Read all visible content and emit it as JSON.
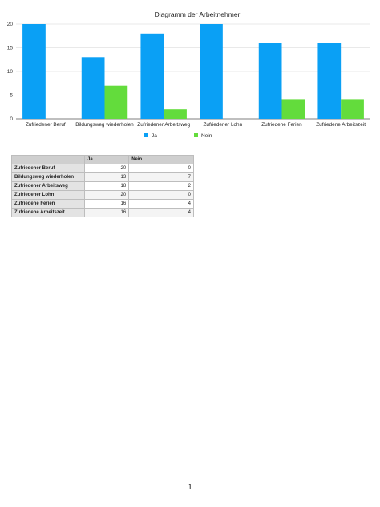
{
  "chart_data": {
    "type": "bar",
    "title": "Diagramm der Arbeitnehmer",
    "categories": [
      "Zufriedener Beruf",
      "Bildungsweg wiederholen",
      "Zufriedener Arbeitsweg",
      "Zufriedener Lohn",
      "Zufriedene Ferien",
      "Zufriedene Arbeitszeit"
    ],
    "series": [
      {
        "name": "Ja",
        "values": [
          20,
          13,
          18,
          20,
          16,
          16
        ],
        "color": "#0aa0f5"
      },
      {
        "name": "Nein",
        "values": [
          0,
          7,
          2,
          0,
          4,
          4
        ],
        "color": "#63dc3c"
      }
    ],
    "ylim": [
      0,
      20
    ],
    "yticks": [
      0,
      5,
      10,
      15,
      20
    ],
    "xlabel": "",
    "ylabel": "",
    "grid": true,
    "legend": "bottom-center"
  },
  "table": {
    "corner": "",
    "headers": [
      "Ja",
      "Nein"
    ],
    "rows": [
      {
        "label": "Zufriedener Beruf",
        "values": [
          "20",
          "0"
        ]
      },
      {
        "label": "Bildungsweg wiederholen",
        "values": [
          "13",
          "7"
        ]
      },
      {
        "label": "Zufriedener Arbeitsweg",
        "values": [
          "18",
          "2"
        ]
      },
      {
        "label": "Zufriedener Lohn",
        "values": [
          "20",
          "0"
        ]
      },
      {
        "label": "Zufriedene Ferien",
        "values": [
          "16",
          "4"
        ]
      },
      {
        "label": "Zufriedene Arbeitszeit",
        "values": [
          "16",
          "4"
        ]
      }
    ]
  },
  "footer": {
    "page_number": "1"
  }
}
